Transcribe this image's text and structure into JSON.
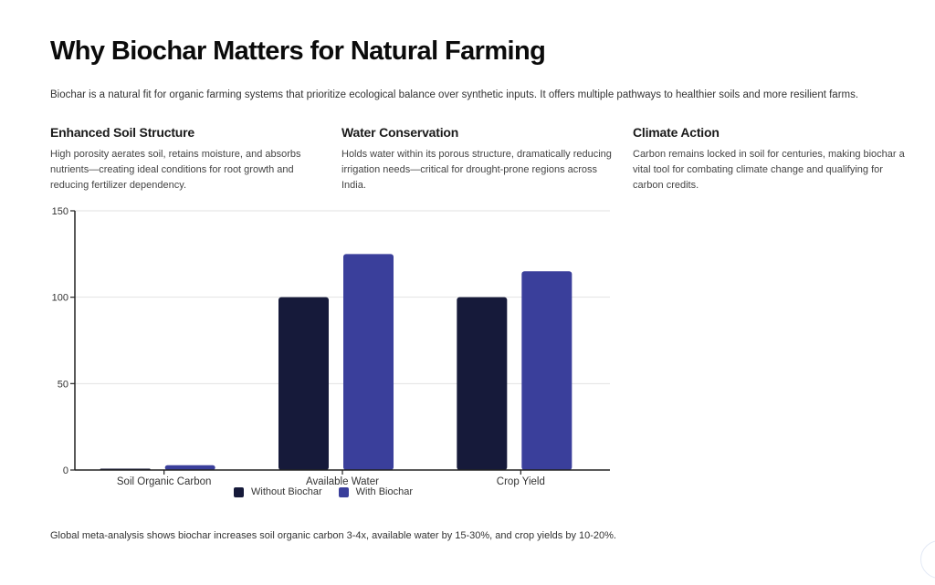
{
  "page": {
    "title": "Why Biochar Matters for Natural Farming",
    "intro": "Biochar is a natural fit for organic farming systems that prioritize ecological balance over synthetic inputs. It offers multiple pathways to healthier soils and more resilient farms.",
    "cards": [
      {
        "heading": "Enhanced Soil Structure",
        "body": "High porosity aerates soil, retains moisture, and absorbs nutrients—creating ideal conditions for root growth and reducing fertilizer dependency."
      },
      {
        "heading": "Water Conservation",
        "body": "Holds water within its porous structure, dramatically reducing irrigation needs—critical for drought-prone regions across India."
      },
      {
        "heading": "Climate Action",
        "body": "Carbon remains locked in soil for centuries, making biochar a vital tool for combating climate change and qualifying for carbon credits."
      }
    ],
    "footnote": "Global meta-analysis shows biochar increases soil organic carbon 3-4x, available water by 15-30%, and crop yields by 10-20%."
  },
  "chart_data": {
    "type": "bar",
    "title": "",
    "xlabel": "",
    "ylabel": "",
    "categories": [
      "Soil Organic Carbon",
      "Available Water",
      "Crop Yield"
    ],
    "series": [
      {
        "name": "Without Biochar",
        "color": "#161a3a",
        "values": [
          0.8,
          100,
          100
        ]
      },
      {
        "name": "With Biochar",
        "color": "#3a3f9b",
        "values": [
          2.8,
          125,
          115
        ]
      }
    ],
    "ylim": [
      0,
      150
    ],
    "yticks": [
      0,
      50,
      100,
      150
    ],
    "grid": true,
    "legend": "bottom-center"
  }
}
